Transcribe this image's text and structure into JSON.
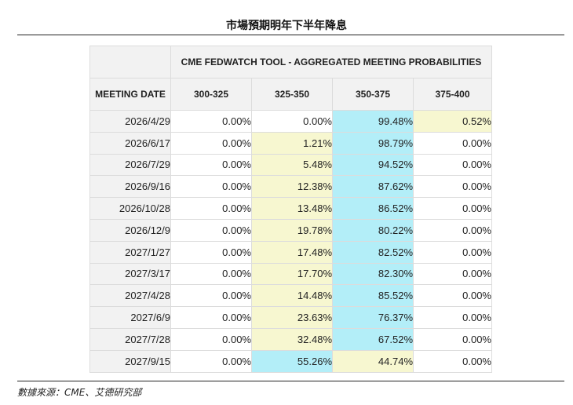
{
  "title": "市場預期明年下半年降息",
  "source": "數據來源：CME、艾德研究部",
  "colors": {
    "highest": "#b3eef8",
    "second": "#f7f7d0",
    "header": "#f2f2f2"
  },
  "chart_data": {
    "type": "table",
    "group_header": "CME FEDWATCH TOOL - AGGREGATED MEETING PROBABILITIES",
    "row_header": "MEETING DATE",
    "columns": [
      "300-325",
      "325-350",
      "350-375",
      "375-400"
    ],
    "rows": [
      {
        "date": "2026/4/29",
        "values": [
          "0.00%",
          "0.00%",
          "99.48%",
          "0.52%"
        ]
      },
      {
        "date": "2026/6/17",
        "values": [
          "0.00%",
          "1.21%",
          "98.79%",
          "0.00%"
        ]
      },
      {
        "date": "2026/7/29",
        "values": [
          "0.00%",
          "5.48%",
          "94.52%",
          "0.00%"
        ]
      },
      {
        "date": "2026/9/16",
        "values": [
          "0.00%",
          "12.38%",
          "87.62%",
          "0.00%"
        ]
      },
      {
        "date": "2026/10/28",
        "values": [
          "0.00%",
          "13.48%",
          "86.52%",
          "0.00%"
        ]
      },
      {
        "date": "2026/12/9",
        "values": [
          "0.00%",
          "19.78%",
          "80.22%",
          "0.00%"
        ]
      },
      {
        "date": "2027/1/27",
        "values": [
          "0.00%",
          "17.48%",
          "82.52%",
          "0.00%"
        ]
      },
      {
        "date": "2027/3/17",
        "values": [
          "0.00%",
          "17.70%",
          "82.30%",
          "0.00%"
        ]
      },
      {
        "date": "2027/4/28",
        "values": [
          "0.00%",
          "14.48%",
          "85.52%",
          "0.00%"
        ]
      },
      {
        "date": "2027/6/9",
        "values": [
          "0.00%",
          "23.63%",
          "76.37%",
          "0.00%"
        ]
      },
      {
        "date": "2027/7/28",
        "values": [
          "0.00%",
          "32.48%",
          "67.52%",
          "0.00%"
        ]
      },
      {
        "date": "2027/9/15",
        "values": [
          "0.00%",
          "55.26%",
          "44.74%",
          "0.00%"
        ]
      }
    ]
  }
}
